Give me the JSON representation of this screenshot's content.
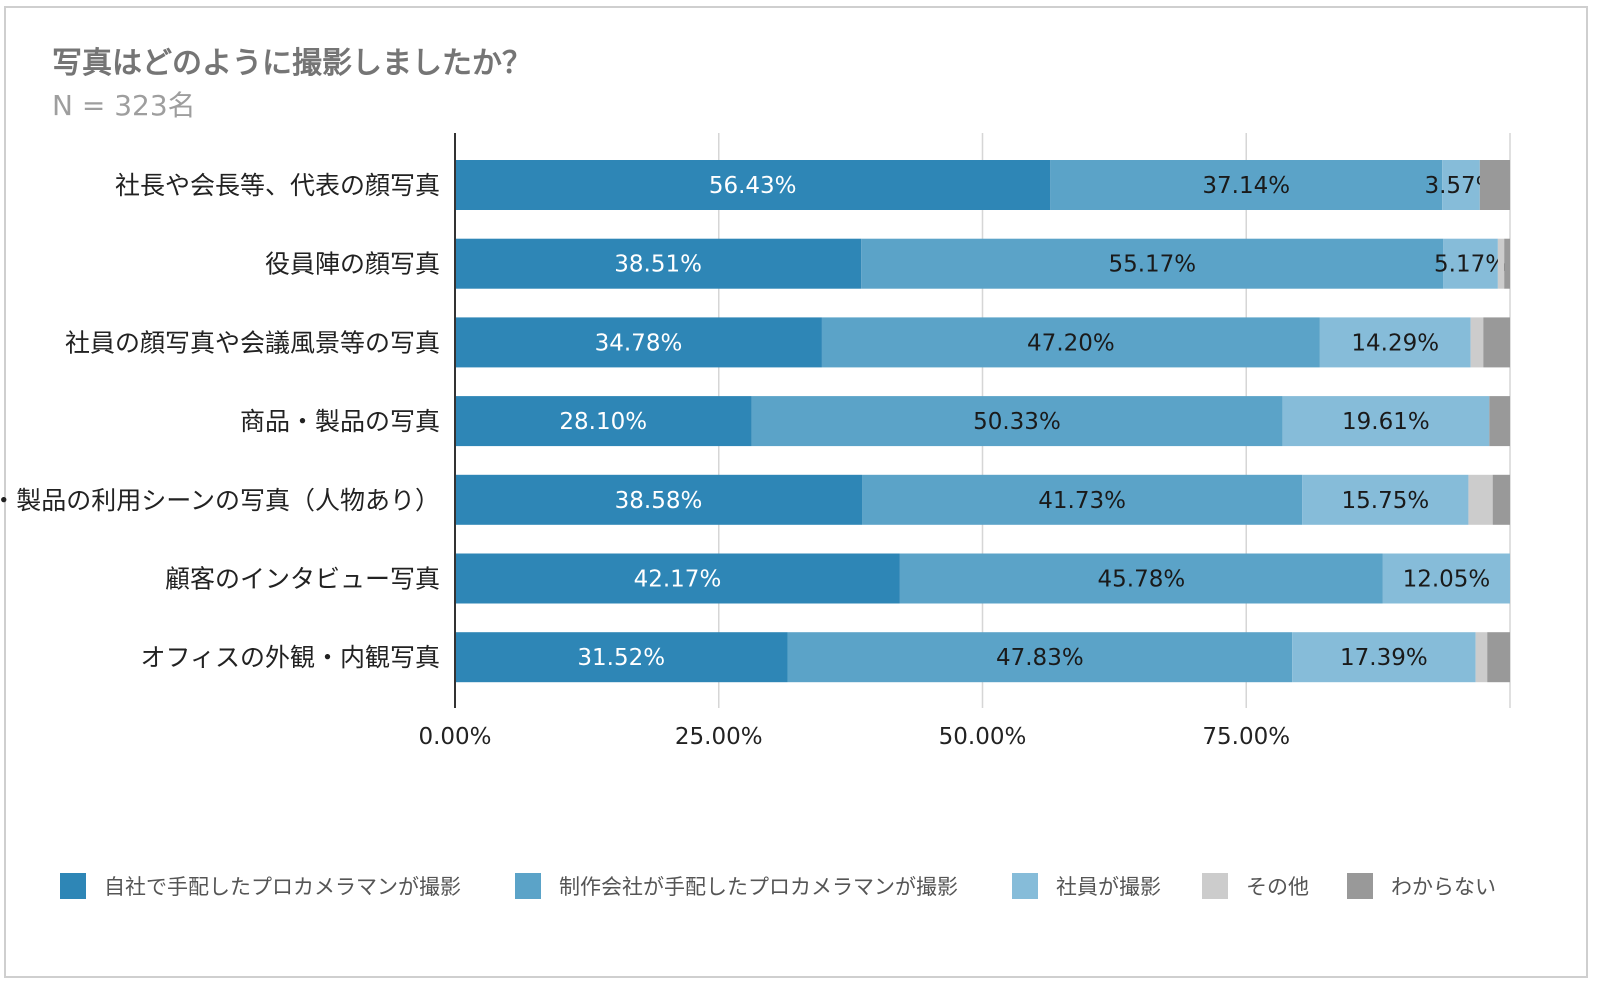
{
  "title": "写真はどのように撮影しましたか？",
  "subtitle": "N = 323名",
  "chart_data": {
    "type": "bar",
    "orientation": "horizontal",
    "stacked": true,
    "categories": [
      "社長や会長等、代表の顔写真",
      "役員陣の顔写真",
      "社員の顔写真や会議風景等の写真",
      "商品・製品の写真",
      "商品・製品の利用シーンの写真（人物あり）",
      "顧客のインタビュー写真",
      "オフィスの外観・内観写真"
    ],
    "series": [
      {
        "name": "自社で手配したプロカメラマンが撮影",
        "color": "#2e86b6",
        "values": [
          56.43,
          38.51,
          34.78,
          28.1,
          38.58,
          42.17,
          31.52
        ],
        "label_color": "#ffffff"
      },
      {
        "name": "制作会社が手配したプロカメラマンが撮影",
        "color": "#5ba3c8",
        "values": [
          37.14,
          55.17,
          47.2,
          50.33,
          41.73,
          45.78,
          47.83
        ],
        "label_color": "#1a1a1a"
      },
      {
        "name": "社員が撮影",
        "color": "#86bcd9",
        "values": [
          3.57,
          5.17,
          14.29,
          19.61,
          15.75,
          12.05,
          17.39
        ],
        "label_color": "#1a1a1a"
      },
      {
        "name": "その他",
        "color": "#cccccc",
        "values": [
          0.0,
          0.6,
          1.2,
          0.0,
          2.3,
          0.0,
          1.1
        ],
        "label_color": "#1a1a1a"
      },
      {
        "name": "わからない",
        "color": "#999999",
        "values": [
          2.86,
          0.55,
          2.53,
          1.96,
          1.64,
          0.0,
          2.16
        ],
        "label_color": "#1a1a1a"
      }
    ],
    "data_labels": [
      [
        "56.43%",
        "37.14%",
        "3.57%",
        "",
        ""
      ],
      [
        "38.51%",
        "55.17%",
        "5.17%",
        "",
        ""
      ],
      [
        "34.78%",
        "47.20%",
        "14.29%",
        "",
        ""
      ],
      [
        "28.10%",
        "50.33%",
        "19.61%",
        "",
        ""
      ],
      [
        "38.58%",
        "41.73%",
        "15.75%",
        "",
        ""
      ],
      [
        "42.17%",
        "45.78%",
        "12.05%",
        "",
        ""
      ],
      [
        "31.52%",
        "47.83%",
        "17.39%",
        "",
        ""
      ]
    ],
    "xlim": [
      0,
      100
    ],
    "xticks": [
      0,
      25,
      50,
      75
    ],
    "xtick_labels": [
      "0.00%",
      "25.00%",
      "50.00%",
      "75.00%"
    ],
    "grid": true,
    "legend_position": "bottom"
  }
}
